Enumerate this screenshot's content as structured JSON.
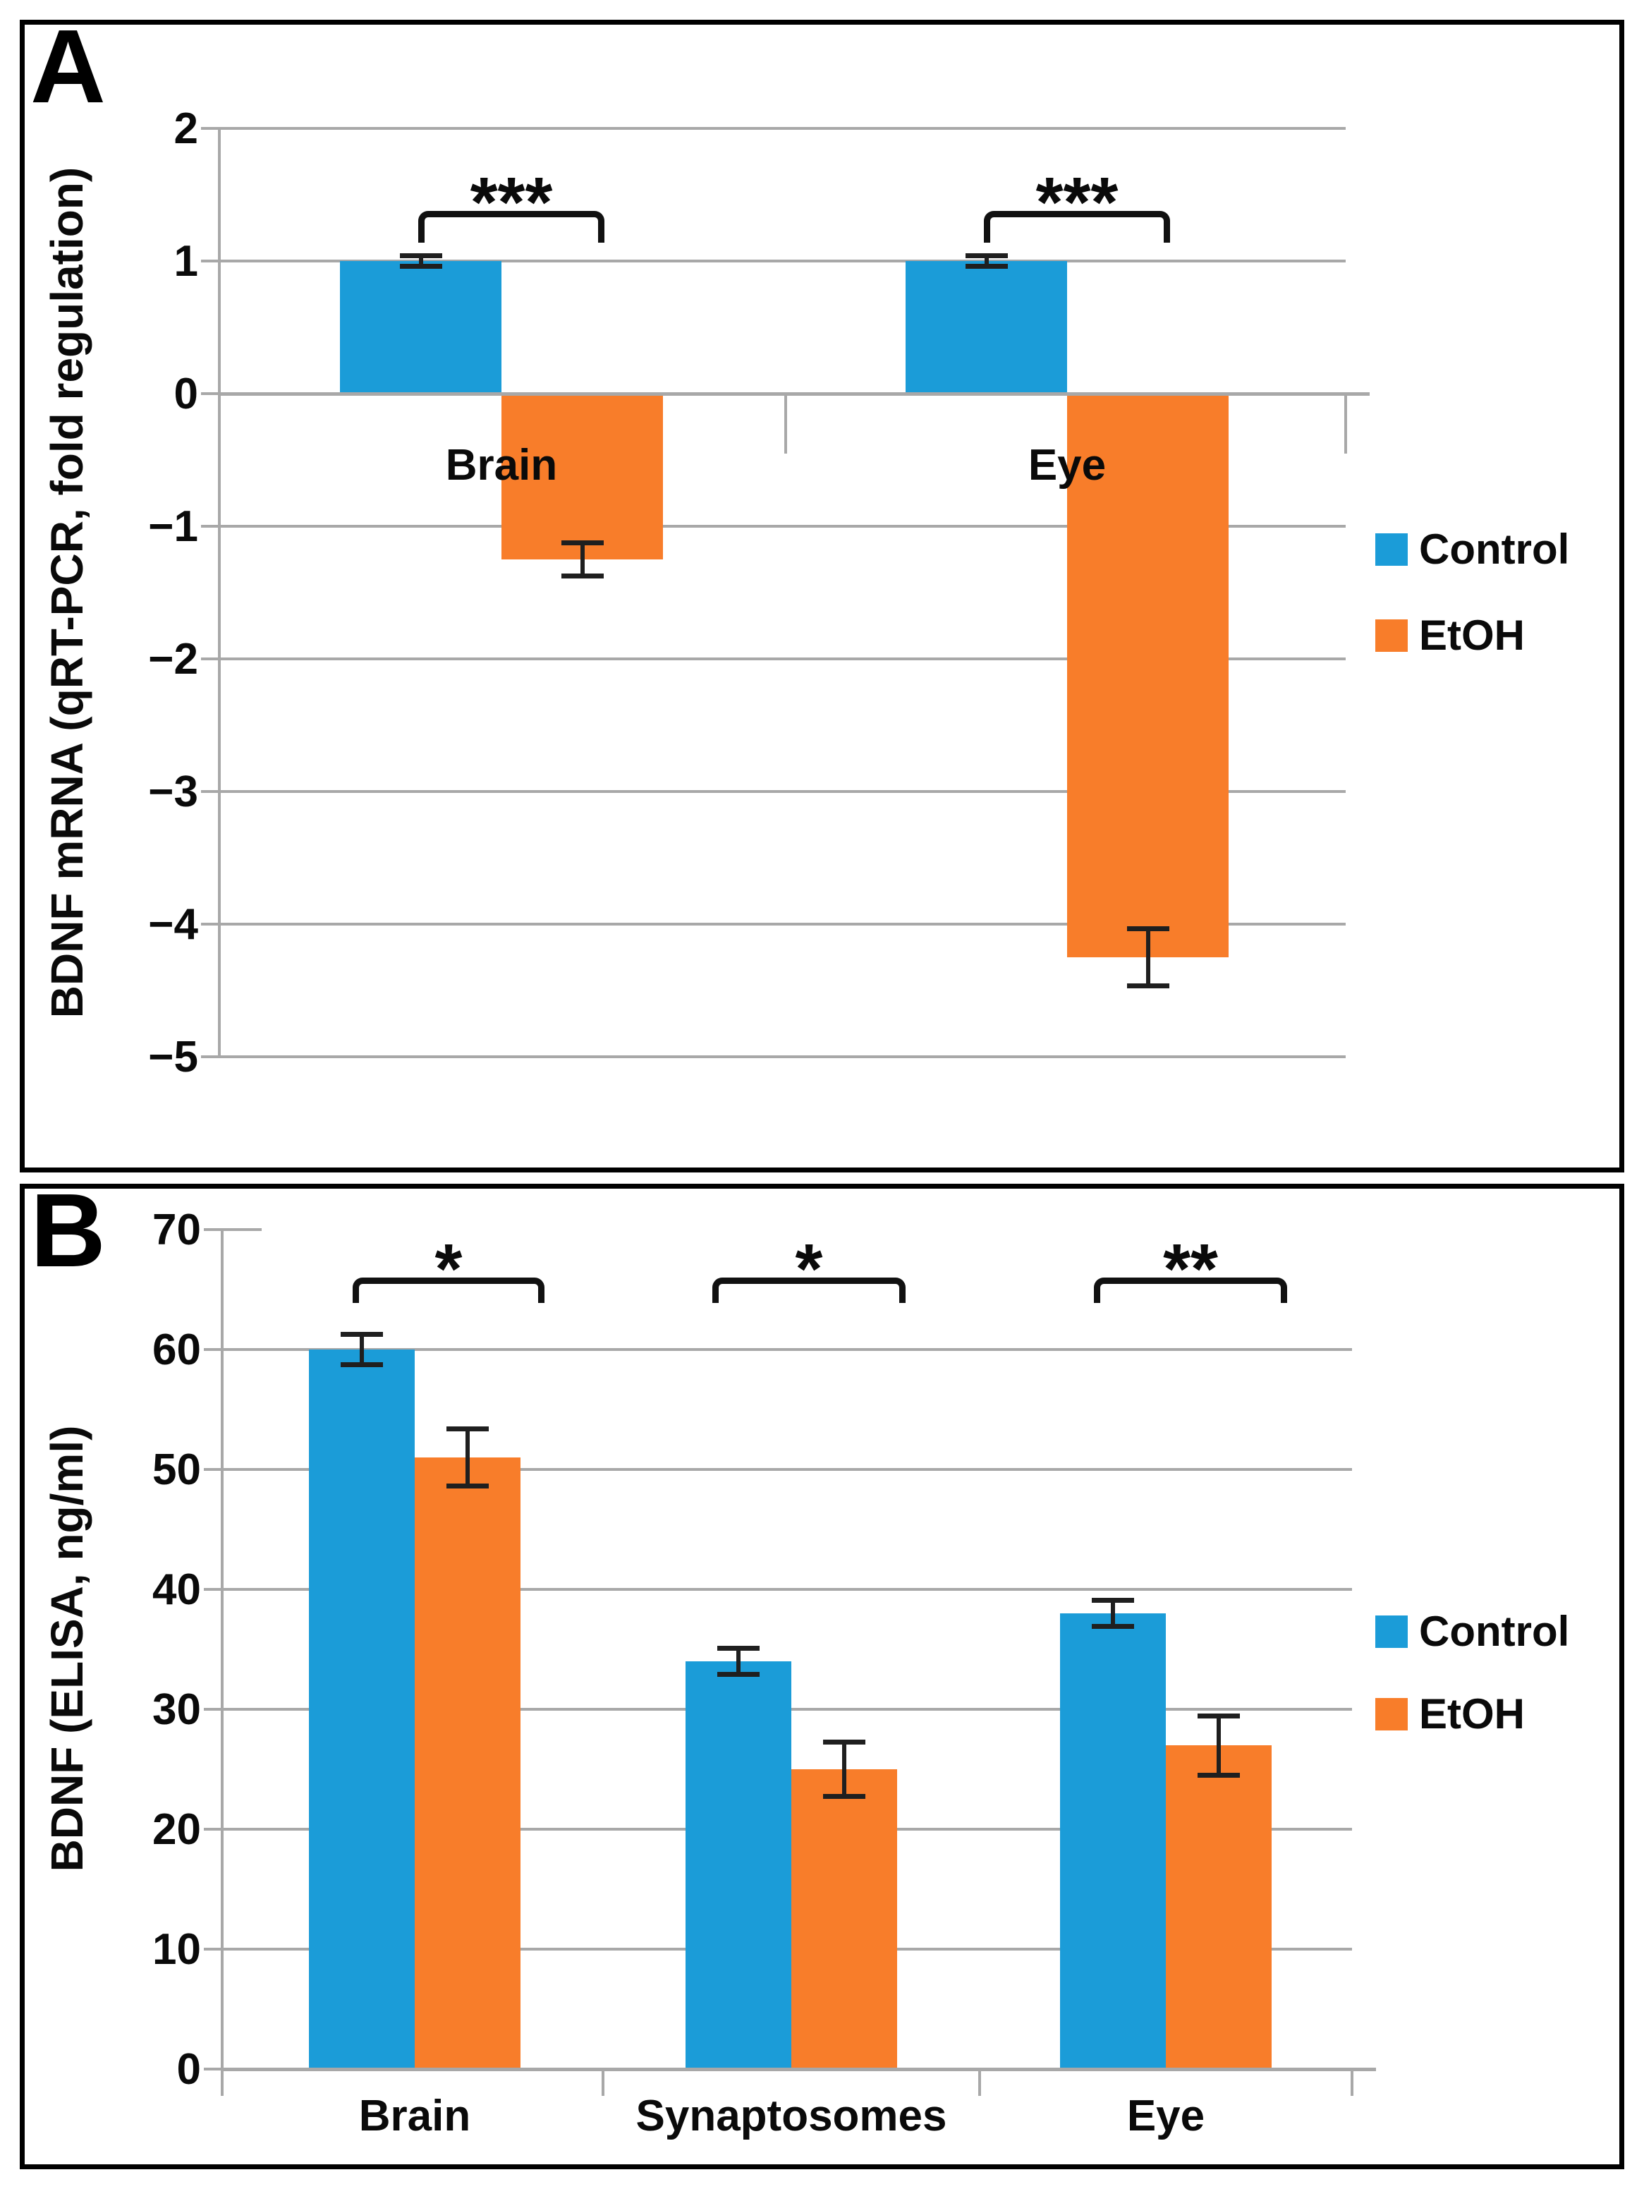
{
  "figure": {
    "background": "#ffffff",
    "panel_border_color": "#000000"
  },
  "colors": {
    "control": "#1b9cd8",
    "etoh": "#f87d2a",
    "gridline": "#a8a8a8",
    "axis": "#a8a8a8",
    "error_bar": "#1f1f1f",
    "bracket": "#111111",
    "text": "#0a0a0a"
  },
  "legend": {
    "items": [
      {
        "label": "Control",
        "color": "#1b9cd8"
      },
      {
        "label": "EtOH",
        "color": "#f87d2a"
      }
    ]
  },
  "chart_data": [
    {
      "panel_label": "A",
      "type": "bar",
      "title": "",
      "ylabel": "BDNF mRNA (qRT-PCR, fold regulation)",
      "xlabel": "",
      "categories": [
        "Brain",
        "Eye"
      ],
      "series": [
        {
          "name": "Control",
          "color": "#1b9cd8",
          "values": [
            1.0,
            1.0
          ],
          "errors": [
            0.04,
            0.04
          ]
        },
        {
          "name": "EtOH",
          "color": "#f87d2a",
          "values": [
            -1.25,
            -4.25
          ],
          "errors": [
            0.13,
            0.22
          ]
        }
      ],
      "ylim": [
        -5,
        2
      ],
      "yticks": [
        {
          "label": "2",
          "value": 2
        },
        {
          "label": "1",
          "value": 1
        },
        {
          "label": "0",
          "value": 0
        },
        {
          "label": "−1",
          "value": -1
        },
        {
          "label": "−2",
          "value": -2
        },
        {
          "label": "−3",
          "value": -3
        },
        {
          "label": "−4",
          "value": -4
        },
        {
          "label": "−5",
          "value": -5
        }
      ],
      "grid": "on",
      "legend_position": "right-middle",
      "category_labels_inside_plot": true,
      "significance": [
        {
          "category": "Brain",
          "label": "***"
        },
        {
          "category": "Eye",
          "label": "***"
        }
      ]
    },
    {
      "panel_label": "B",
      "type": "bar",
      "title": "",
      "ylabel": "BDNF (ELISA, ng/ml)",
      "xlabel": "",
      "categories": [
        "Brain",
        "Synaptosomes",
        "Eye"
      ],
      "series": [
        {
          "name": "Control",
          "color": "#1b9cd8",
          "values": [
            60,
            34,
            38
          ],
          "errors": [
            1.3,
            1.1,
            1.1
          ]
        },
        {
          "name": "EtOH",
          "color": "#f87d2a",
          "values": [
            51,
            25,
            27
          ],
          "errors": [
            2.4,
            2.3,
            2.5
          ]
        }
      ],
      "ylim": [
        0,
        70
      ],
      "yticks": [
        {
          "label": "70",
          "value": 70
        },
        {
          "label": "60",
          "value": 60
        },
        {
          "label": "50",
          "value": 50
        },
        {
          "label": "40",
          "value": 40
        },
        {
          "label": "30",
          "value": 30
        },
        {
          "label": "20",
          "value": 20
        },
        {
          "label": "10",
          "value": 10
        },
        {
          "label": "0",
          "value": 0
        }
      ],
      "grid": "on",
      "legend_position": "right-middle",
      "category_labels_inside_plot": false,
      "significance": [
        {
          "category": "Brain",
          "label": "*"
        },
        {
          "category": "Synaptosomes",
          "label": "*"
        },
        {
          "category": "Eye",
          "label": "**"
        }
      ]
    }
  ]
}
